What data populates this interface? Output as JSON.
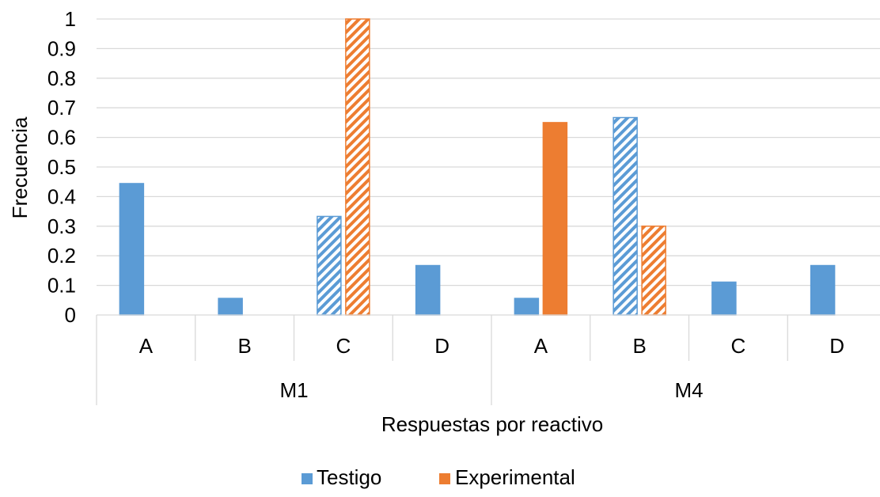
{
  "chart_data": {
    "type": "bar",
    "title": "",
    "xlabel": "Respuestas por reactivo",
    "ylabel": "Frecuencia",
    "ylim": [
      0,
      1
    ],
    "yticks": [
      "0",
      "0.1",
      "0.2",
      "0.3",
      "0.4",
      "0.5",
      "0.6",
      "0.7",
      "0.8",
      "0.9",
      "1"
    ],
    "categories": [
      "A",
      "B",
      "C",
      "D",
      "A",
      "B",
      "C",
      "D"
    ],
    "groups": [
      {
        "label": "M1",
        "categories": [
          "A",
          "B",
          "C",
          "D"
        ]
      },
      {
        "label": "M4",
        "categories": [
          "A",
          "B",
          "C",
          "D"
        ]
      }
    ],
    "series": [
      {
        "name": "Testigo",
        "color": "#5B9BD5",
        "values": [
          0.444,
          0.056,
          0.333,
          0.167,
          0.056,
          0.667,
          0.111,
          0.167
        ]
      },
      {
        "name": "Experimental",
        "color": "#ED7D31",
        "values": [
          0,
          0,
          1.0,
          0,
          0.65,
          0.3,
          0,
          0
        ]
      }
    ],
    "highlighted_categories": [
      2,
      5
    ],
    "highlight_style": "diagonal-hatch",
    "grid": true,
    "legend": "bottom"
  }
}
